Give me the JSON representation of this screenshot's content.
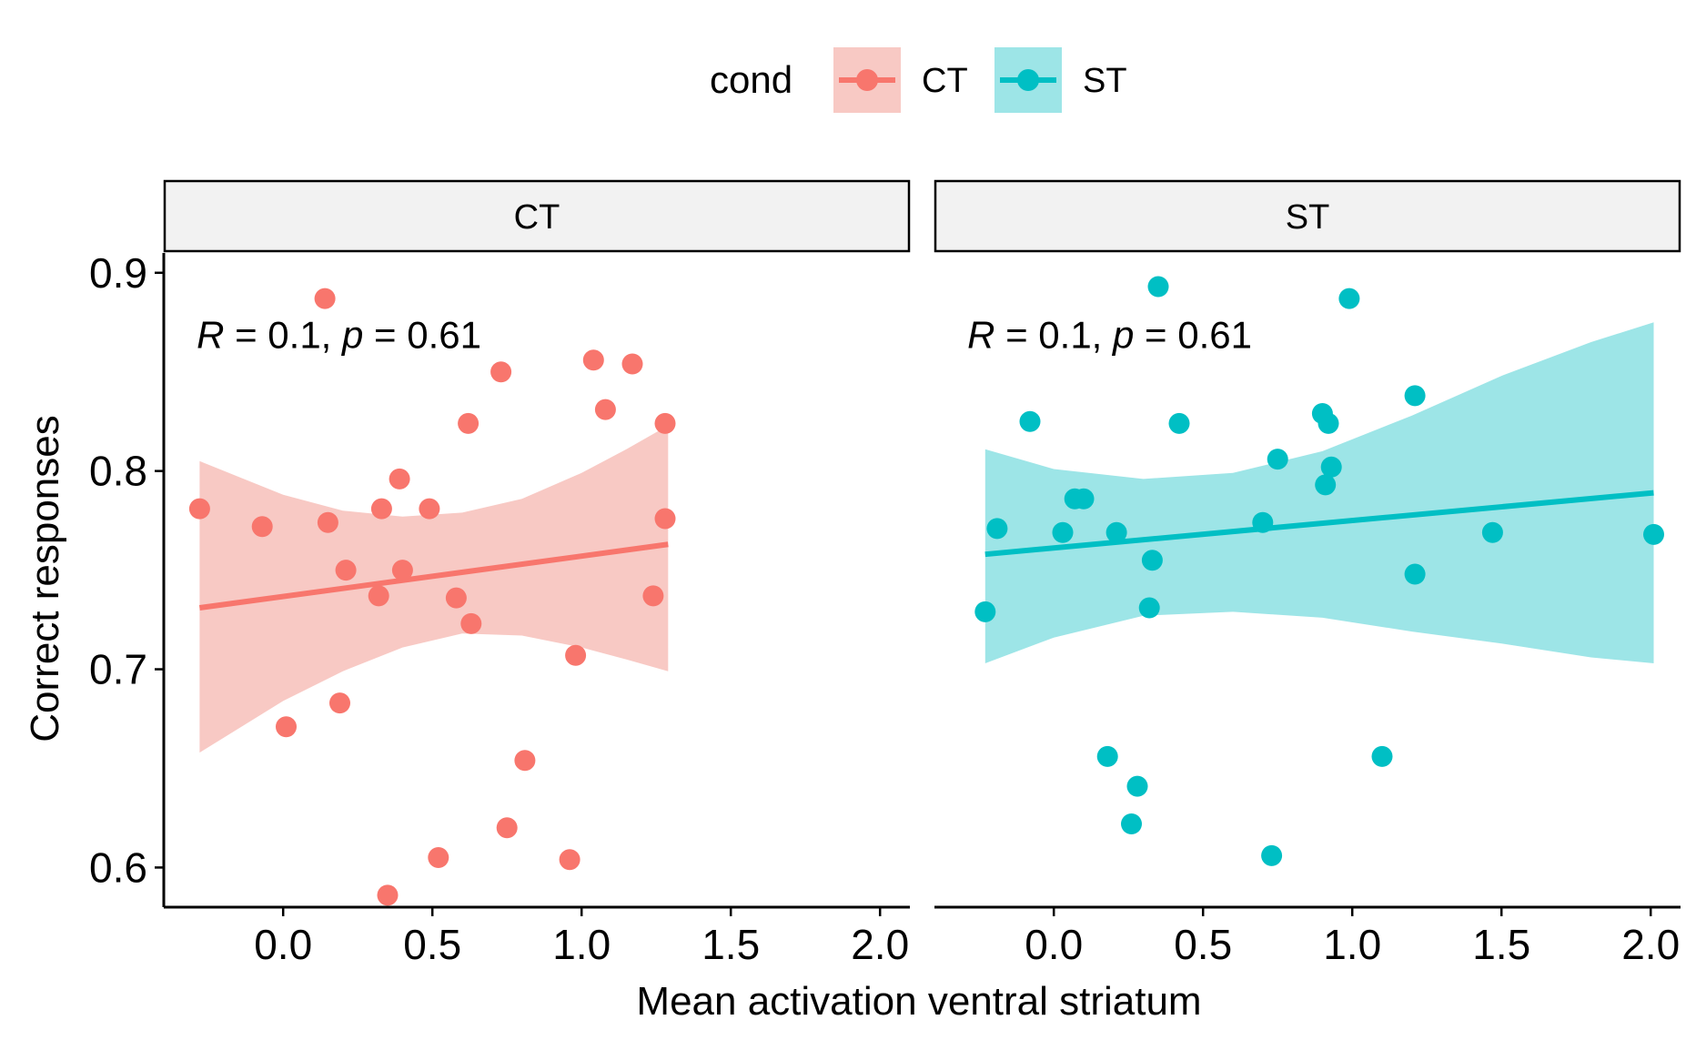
{
  "legend": {
    "title": "cond",
    "items": [
      {
        "label": "CT",
        "color": "#F8766D",
        "fill": "#F8C9C4"
      },
      {
        "label": "ST",
        "color": "#00BFC4",
        "fill": "#9DE5E7"
      }
    ]
  },
  "axis": {
    "xlabel": "Mean activation ventral striatum",
    "ylabel": "Correct responses"
  },
  "chart_data": {
    "type": "scatter",
    "xlabel": "Mean activation ventral striatum",
    "ylabel": "Correct responses",
    "xlim": [
      -0.4,
      2.1
    ],
    "ylim": [
      0.58,
      0.91
    ],
    "xticks": [
      "0.0",
      "0.5",
      "1.0",
      "1.5",
      "2.0"
    ],
    "yticks": [
      "0.6",
      "0.7",
      "0.8",
      "0.9"
    ],
    "xtick_values": [
      0,
      0.5,
      1,
      1.5,
      2
    ],
    "ytick_values": [
      0.6,
      0.7,
      0.8,
      0.9
    ],
    "legend_position": "top",
    "grid": false,
    "facets": [
      {
        "label": "CT",
        "color": "#F8766D",
        "ribbon_color": "#F8C9C4",
        "stat": "= 0.1,",
        "stat_p": "= 0.61",
        "points": [
          [
            -0.28,
            0.781
          ],
          [
            -0.07,
            0.772
          ],
          [
            0.01,
            0.671
          ],
          [
            0.14,
            0.887
          ],
          [
            0.15,
            0.774
          ],
          [
            0.19,
            0.683
          ],
          [
            0.21,
            0.75
          ],
          [
            0.32,
            0.737
          ],
          [
            0.33,
            0.781
          ],
          [
            0.35,
            0.586
          ],
          [
            0.39,
            0.796
          ],
          [
            0.4,
            0.75
          ],
          [
            0.49,
            0.781
          ],
          [
            0.52,
            0.605
          ],
          [
            0.58,
            0.736
          ],
          [
            0.62,
            0.824
          ],
          [
            0.63,
            0.723
          ],
          [
            0.73,
            0.85
          ],
          [
            0.75,
            0.62
          ],
          [
            0.81,
            0.654
          ],
          [
            0.96,
            0.604
          ],
          [
            0.98,
            0.707
          ],
          [
            1.04,
            0.856
          ],
          [
            1.08,
            0.831
          ],
          [
            1.17,
            0.854
          ],
          [
            1.24,
            0.737
          ],
          [
            1.28,
            0.824
          ],
          [
            1.28,
            0.776
          ]
        ],
        "fit": {
          "x": [
            -0.28,
            1.29
          ],
          "y": [
            0.731,
            0.763
          ]
        },
        "ribbon": {
          "x": [
            -0.28,
            0.0,
            0.2,
            0.4,
            0.6,
            0.8,
            1.0,
            1.15,
            1.29
          ],
          "upper": [
            0.805,
            0.788,
            0.78,
            0.777,
            0.779,
            0.786,
            0.799,
            0.811,
            0.823
          ],
          "lower": [
            0.658,
            0.684,
            0.699,
            0.711,
            0.718,
            0.717,
            0.711,
            0.705,
            0.699
          ]
        }
      },
      {
        "label": "ST",
        "color": "#00BFC4",
        "ribbon_color": "#9DE5E7",
        "stat": "= 0.1,",
        "stat_p": "= 0.61",
        "points": [
          [
            -0.23,
            0.729
          ],
          [
            -0.19,
            0.771
          ],
          [
            -0.08,
            0.825
          ],
          [
            0.03,
            0.769
          ],
          [
            0.07,
            0.786
          ],
          [
            0.1,
            0.786
          ],
          [
            0.18,
            0.656
          ],
          [
            0.21,
            0.769
          ],
          [
            0.26,
            0.622
          ],
          [
            0.28,
            0.641
          ],
          [
            0.32,
            0.731
          ],
          [
            0.33,
            0.755
          ],
          [
            0.35,
            0.893
          ],
          [
            0.42,
            0.824
          ],
          [
            0.7,
            0.774
          ],
          [
            0.73,
            0.606
          ],
          [
            0.75,
            0.806
          ],
          [
            0.9,
            0.829
          ],
          [
            0.91,
            0.793
          ],
          [
            0.92,
            0.824
          ],
          [
            0.93,
            0.802
          ],
          [
            0.99,
            0.887
          ],
          [
            1.1,
            0.656
          ],
          [
            1.21,
            0.838
          ],
          [
            1.21,
            0.748
          ],
          [
            1.47,
            0.769
          ],
          [
            2.01,
            0.768
          ]
        ],
        "fit": {
          "x": [
            -0.23,
            2.01
          ],
          "y": [
            0.758,
            0.789
          ]
        },
        "ribbon": {
          "x": [
            -0.23,
            0.0,
            0.3,
            0.6,
            0.9,
            1.2,
            1.5,
            1.8,
            2.01
          ],
          "upper": [
            0.811,
            0.801,
            0.796,
            0.799,
            0.81,
            0.828,
            0.848,
            0.865,
            0.875
          ],
          "lower": [
            0.703,
            0.716,
            0.727,
            0.729,
            0.726,
            0.719,
            0.713,
            0.706,
            0.703
          ]
        }
      }
    ]
  }
}
